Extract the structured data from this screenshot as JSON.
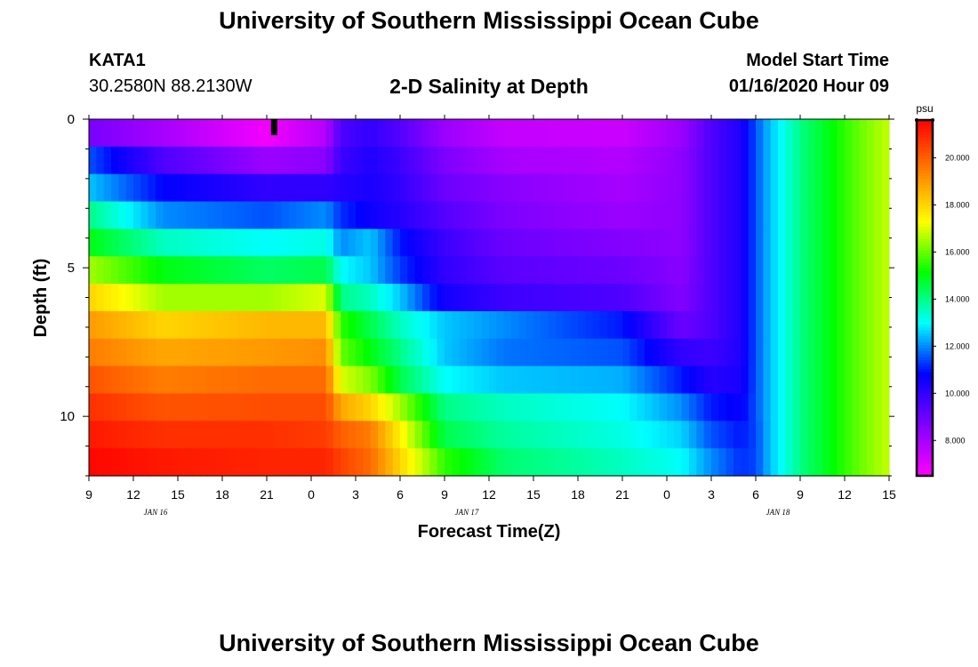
{
  "header": {
    "title": "University of Southern Mississippi Ocean Cube",
    "station": "KATA1",
    "coords": "30.2580N 88.2130W",
    "subtitle": "2-D Salinity at Depth",
    "model_start_label": "Model Start Time",
    "model_start_value": "01/16/2020 Hour 09",
    "bottom_title": "University of Southern Mississippi Ocean Cube"
  },
  "chart_data": {
    "type": "heatmap",
    "xlabel": "Forecast Time(Z)",
    "ylabel": "Depth (ft)",
    "x_ticks": [
      "9",
      "12",
      "15",
      "18",
      "21",
      "0",
      "3",
      "6",
      "9",
      "12",
      "15",
      "18",
      "21",
      "0",
      "3",
      "6",
      "9",
      "12",
      "15"
    ],
    "date_labels": [
      {
        "text": "JAN 16",
        "after_tick": 1.5
      },
      {
        "text": "JAN 17",
        "after_tick": 8.5
      },
      {
        "text": "JAN 18",
        "after_tick": 15.5
      }
    ],
    "y_ticks": [
      0,
      5,
      10
    ],
    "ylim": [
      0,
      12
    ],
    "x_hours_total": 54,
    "current_time_marker_hour": 12.5,
    "colorbar": {
      "unit": "psu",
      "min": 6.5,
      "max": 21.6,
      "ticks": [
        "8.000",
        "10.000",
        "12.000",
        "14.000",
        "16.000",
        "18.000",
        "20.000"
      ],
      "colors": [
        "#ff00ff",
        "#8000ff",
        "#0000ff",
        "#00ffff",
        "#00ff00",
        "#ffff00",
        "#ff8000",
        "#ff0000"
      ]
    },
    "x_hour_keys": [
      0,
      5,
      12,
      16,
      17,
      19,
      21,
      24,
      28,
      36,
      40,
      42,
      44,
      45,
      46,
      47,
      48,
      50,
      52,
      54
    ],
    "depth_rows": [
      {
        "depth": 0,
        "values": [
          8.8,
          8.0,
          6.7,
          7.8,
          9.5,
          10.0,
          9.4,
          8.2,
          7.5,
          7.4,
          8.2,
          9.5,
          10.3,
          11.5,
          12.5,
          13.2,
          14.0,
          15.0,
          16.0,
          16.8
        ]
      },
      {
        "depth": 1,
        "values": [
          11.5,
          9.5,
          8.2,
          8.5,
          9.8,
          10.3,
          9.8,
          8.7,
          8.0,
          7.8,
          8.4,
          9.5,
          10.3,
          11.5,
          12.5,
          13.2,
          14.0,
          15.0,
          16.0,
          16.8
        ]
      },
      {
        "depth": 2,
        "values": [
          12.5,
          10.8,
          10.0,
          10.0,
          10.2,
          10.4,
          10.0,
          9.0,
          8.5,
          8.0,
          8.4,
          9.5,
          10.3,
          11.5,
          12.5,
          13.2,
          14.0,
          15.0,
          16.0,
          16.8
        ]
      },
      {
        "depth": 3,
        "values": [
          14.0,
          12.0,
          11.5,
          12.0,
          11.2,
          10.6,
          10.2,
          9.4,
          8.7,
          8.2,
          8.4,
          9.5,
          10.3,
          11.5,
          12.5,
          13.2,
          14.0,
          15.0,
          16.0,
          16.8
        ]
      },
      {
        "depth": 4,
        "values": [
          15.0,
          13.5,
          13.0,
          13.2,
          12.0,
          12.5,
          11.0,
          9.8,
          9.0,
          8.6,
          8.4,
          9.5,
          10.3,
          11.5,
          12.5,
          13.2,
          14.0,
          15.0,
          16.0,
          16.8
        ]
      },
      {
        "depth": 5,
        "values": [
          16.5,
          15.0,
          14.3,
          14.5,
          13.0,
          12.5,
          11.3,
          10.0,
          9.3,
          9.0,
          8.5,
          9.5,
          10.3,
          11.5,
          12.5,
          13.2,
          14.0,
          15.0,
          16.0,
          16.8
        ]
      },
      {
        "depth": 6,
        "values": [
          18.0,
          16.5,
          16.5,
          17.0,
          14.0,
          13.5,
          12.5,
          10.5,
          9.8,
          9.5,
          8.6,
          9.5,
          10.3,
          11.5,
          12.5,
          13.2,
          14.0,
          15.0,
          16.0,
          16.8
        ]
      },
      {
        "depth": 7,
        "values": [
          19.0,
          18.0,
          18.5,
          18.5,
          15.5,
          14.5,
          13.5,
          12.5,
          12.0,
          11.0,
          9.0,
          9.5,
          10.3,
          11.5,
          12.5,
          13.2,
          14.0,
          15.0,
          16.0,
          16.8
        ]
      },
      {
        "depth": 8,
        "values": [
          19.5,
          18.8,
          19.0,
          19.2,
          16.0,
          15.0,
          14.0,
          12.5,
          11.8,
          11.5,
          10.0,
          9.8,
          10.3,
          11.5,
          12.5,
          13.2,
          14.0,
          15.0,
          16.0,
          16.8
        ]
      },
      {
        "depth": 9,
        "values": [
          20.2,
          19.5,
          19.8,
          19.8,
          17.0,
          16.2,
          14.5,
          13.0,
          12.5,
          12.3,
          11.0,
          10.2,
          10.4,
          11.5,
          12.5,
          13.2,
          14.0,
          15.0,
          16.0,
          16.8
        ]
      },
      {
        "depth": 10,
        "values": [
          20.8,
          20.2,
          20.3,
          20.3,
          18.8,
          18.0,
          16.5,
          14.0,
          13.5,
          13.0,
          12.0,
          11.0,
          10.7,
          11.5,
          12.5,
          13.2,
          14.0,
          15.0,
          16.0,
          16.8
        ]
      },
      {
        "depth": 11,
        "values": [
          21.2,
          20.8,
          20.8,
          20.6,
          20.0,
          19.5,
          17.5,
          14.5,
          13.8,
          13.2,
          12.6,
          11.5,
          11.0,
          11.4,
          12.5,
          13.2,
          14.0,
          15.0,
          16.0,
          16.8
        ]
      },
      {
        "depth": 12,
        "values": [
          21.5,
          21.2,
          21.0,
          21.0,
          20.5,
          19.8,
          18.0,
          15.5,
          14.2,
          13.5,
          13.0,
          12.0,
          11.2,
          11.4,
          12.5,
          13.2,
          14.0,
          15.0,
          16.0,
          16.8
        ]
      }
    ]
  }
}
